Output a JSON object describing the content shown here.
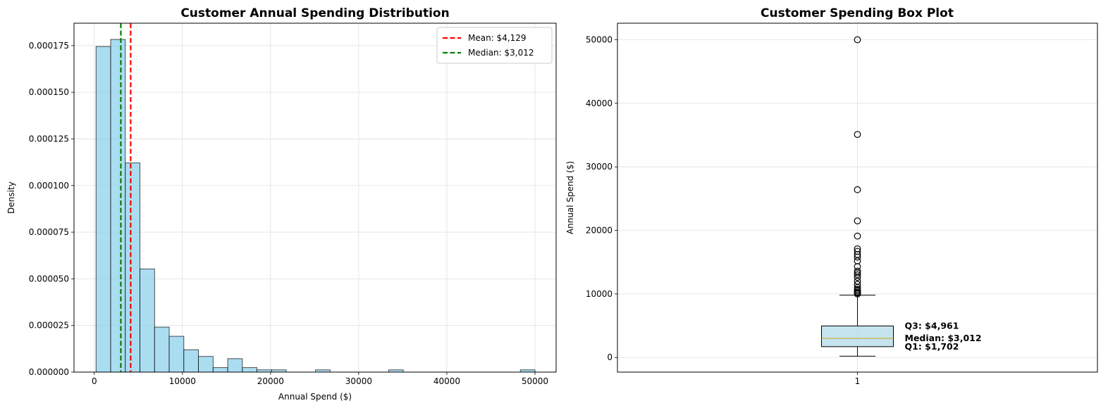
{
  "chart_data": [
    {
      "type": "histogram",
      "title": "Customer Annual Spending Distribution",
      "xlabel": "Annual Spend ($)",
      "ylabel": "Density",
      "xlim": [
        -2300,
        52400
      ],
      "ylim": [
        0,
        0.000187
      ],
      "grid": true,
      "legend_position": "top-right",
      "x_ticks": [
        {
          "value": 0,
          "label": "0"
        },
        {
          "value": 10000,
          "label": "10000"
        },
        {
          "value": 20000,
          "label": "20000"
        },
        {
          "value": 30000,
          "label": "30000"
        },
        {
          "value": 40000,
          "label": "40000"
        },
        {
          "value": 50000,
          "label": "50000"
        }
      ],
      "y_ticks": [
        {
          "value": 0,
          "label": "0.000000"
        },
        {
          "value": 2.5e-05,
          "label": "0.000025"
        },
        {
          "value": 5e-05,
          "label": "0.000050"
        },
        {
          "value": 7.5e-05,
          "label": "0.000075"
        },
        {
          "value": 0.0001,
          "label": "0.000100"
        },
        {
          "value": 0.000125,
          "label": "0.000125"
        },
        {
          "value": 0.00015,
          "label": "0.000150"
        },
        {
          "value": 0.000175,
          "label": "0.000175"
        }
      ],
      "bins_start": 200,
      "bin_width": 1660,
      "densities": [
        0.0001745,
        0.0001783,
        0.0001121,
        5.53e-05,
        2.41e-05,
        1.92e-05,
        1.2e-05,
        8.4e-06,
        2.4e-06,
        7.2e-06,
        2.4e-06,
        1.2e-06,
        1.2e-06,
        0,
        0,
        1.2e-06,
        0,
        0,
        0,
        0,
        1.2e-06,
        0,
        0,
        0,
        0,
        0,
        0,
        0,
        0,
        1.2e-06
      ],
      "bar_color": "#87ceeb",
      "vlines": [
        {
          "value": 4129,
          "label": "Mean: $4,129",
          "color": "#ff0000"
        },
        {
          "value": 3012,
          "label": "Median: $3,012",
          "color": "#008000"
        }
      ]
    },
    {
      "type": "box",
      "title": "Customer Spending Box Plot",
      "xlabel": "",
      "ylabel": "Annual Spend ($)",
      "ylim": [
        -2300,
        52600
      ],
      "grid": true,
      "x_ticks": [
        {
          "value": 1,
          "label": "1"
        }
      ],
      "y_ticks": [
        {
          "value": 0,
          "label": "0"
        },
        {
          "value": 10000,
          "label": "10000"
        },
        {
          "value": 20000,
          "label": "20000"
        },
        {
          "value": 30000,
          "label": "30000"
        },
        {
          "value": 40000,
          "label": "40000"
        },
        {
          "value": 50000,
          "label": "50000"
        }
      ],
      "whisker_low": 200,
      "q1": 1702,
      "median": 3012,
      "q3": 4961,
      "whisker_high": 9800,
      "outliers": [
        10000,
        10150,
        10300,
        10500,
        10700,
        11000,
        11500,
        12000,
        12600,
        13000,
        13300,
        13600,
        14300,
        15200,
        15800,
        16200,
        16700,
        17100,
        19100,
        21500,
        26400,
        35100,
        50000
      ],
      "box_color": "#add8e6",
      "median_color": "#d4a017",
      "annotations": {
        "q3": "Q3: $4,961",
        "median": "Median: $3,012",
        "q1": "Q1: $1,702"
      }
    }
  ]
}
